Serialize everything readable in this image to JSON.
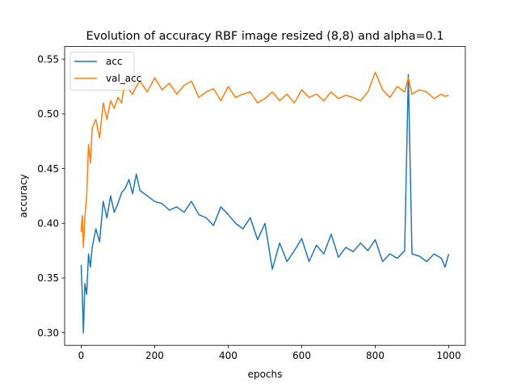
{
  "chart_data": {
    "type": "line",
    "title": "Evolution of accuracy RBF image resized (8,8) and alpha=0.1",
    "xlabel": "epochs",
    "ylabel": "accuracy",
    "xlim": [
      -45,
      1045
    ],
    "ylim": [
      0.2885,
      0.5615
    ],
    "xticks": [
      0,
      200,
      400,
      600,
      800,
      1000
    ],
    "xtick_labels": [
      "0",
      "200",
      "400",
      "600",
      "800",
      "1000"
    ],
    "yticks": [
      0.3,
      0.35,
      0.4,
      0.45,
      0.5,
      0.55
    ],
    "ytick_labels": [
      "0.30",
      "0.35",
      "0.40",
      "0.45",
      "0.50",
      "0.55"
    ],
    "grid": false,
    "legend_placement": "upper-left",
    "series": [
      {
        "name": "acc",
        "color": "#1f77b4",
        "x": [
          0,
          3,
          6,
          10,
          15,
          20,
          25,
          30,
          40,
          50,
          60,
          70,
          80,
          90,
          100,
          110,
          120,
          130,
          140,
          150,
          160,
          180,
          200,
          220,
          240,
          260,
          280,
          300,
          320,
          340,
          360,
          380,
          400,
          420,
          440,
          460,
          480,
          500,
          520,
          540,
          560,
          580,
          600,
          620,
          640,
          660,
          680,
          700,
          720,
          740,
          760,
          780,
          800,
          820,
          840,
          860,
          880,
          890,
          900,
          920,
          940,
          960,
          980,
          990,
          1000
        ],
        "y": [
          0.362,
          0.335,
          0.3,
          0.345,
          0.335,
          0.372,
          0.36,
          0.378,
          0.395,
          0.383,
          0.42,
          0.405,
          0.425,
          0.41,
          0.418,
          0.428,
          0.432,
          0.44,
          0.427,
          0.445,
          0.43,
          0.425,
          0.42,
          0.418,
          0.412,
          0.415,
          0.41,
          0.42,
          0.408,
          0.405,
          0.398,
          0.415,
          0.408,
          0.4,
          0.395,
          0.405,
          0.385,
          0.4,
          0.358,
          0.382,
          0.365,
          0.375,
          0.386,
          0.365,
          0.38,
          0.372,
          0.39,
          0.369,
          0.378,
          0.374,
          0.382,
          0.375,
          0.385,
          0.365,
          0.372,
          0.368,
          0.375,
          0.536,
          0.372,
          0.37,
          0.365,
          0.372,
          0.368,
          0.36,
          0.372
        ]
      },
      {
        "name": "val_acc",
        "color": "#ff7f0e",
        "x": [
          0,
          3,
          6,
          10,
          15,
          20,
          25,
          30,
          40,
          50,
          60,
          70,
          80,
          90,
          100,
          110,
          120,
          130,
          140,
          150,
          160,
          180,
          200,
          220,
          240,
          260,
          280,
          300,
          320,
          340,
          360,
          380,
          400,
          420,
          440,
          460,
          480,
          500,
          520,
          540,
          560,
          580,
          600,
          620,
          640,
          660,
          680,
          700,
          720,
          740,
          760,
          780,
          800,
          820,
          840,
          860,
          880,
          890,
          900,
          920,
          940,
          960,
          980,
          990,
          1000
        ],
        "y": [
          0.392,
          0.407,
          0.378,
          0.405,
          0.425,
          0.472,
          0.455,
          0.487,
          0.495,
          0.478,
          0.51,
          0.495,
          0.512,
          0.505,
          0.515,
          0.51,
          0.532,
          0.522,
          0.518,
          0.525,
          0.53,
          0.52,
          0.533,
          0.522,
          0.528,
          0.518,
          0.526,
          0.53,
          0.515,
          0.52,
          0.523,
          0.512,
          0.525,
          0.515,
          0.518,
          0.52,
          0.51,
          0.514,
          0.52,
          0.512,
          0.518,
          0.51,
          0.522,
          0.515,
          0.518,
          0.512,
          0.52,
          0.514,
          0.517,
          0.515,
          0.512,
          0.52,
          0.538,
          0.522,
          0.515,
          0.525,
          0.52,
          0.533,
          0.518,
          0.522,
          0.52,
          0.514,
          0.518,
          0.516,
          0.517
        ]
      }
    ]
  }
}
